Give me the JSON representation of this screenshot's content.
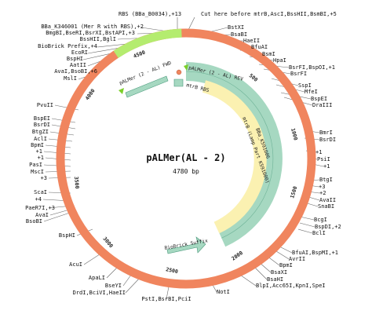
{
  "plasmid": {
    "name": "pALMer(AL - 2)",
    "length": "4780 bp"
  },
  "colors": {
    "backbone": "#f0855e",
    "rbs_arc": "#b4ec6f",
    "teal": "#a6d8c1",
    "yellow": "#fbf1b1",
    "primer": "#7ccf2a"
  },
  "ticks": [
    "500",
    "1000",
    "1500",
    "2000",
    "2500",
    "3000",
    "3500",
    "4000",
    "4500"
  ],
  "features": {
    "fwd_primer": "pALMer (2 - AL) FWD",
    "rev_primer": "pALMer (2 - AL) REV",
    "mtrb_rbs": "mtrB RBS",
    "bba_k591006": "BBa_K591006",
    "mtrb_part": "mtrB (Lamp Part K591000)",
    "suffix": "BioBrick Suffix"
  },
  "labels": {
    "rbs": "RBS (BBa_B0034),+13",
    "cut": "Cut here before mtrB,AscI,BssHII,BsmBI,+5",
    "bba_k346001": "BBa_K346001 (Mer R with RBS),+2",
    "bmgbi": "BmgBI,BseRI,BsrXI,BstAPI,+3",
    "bsshii_bgli": "BssHII,BglI",
    "prefix": "BioBrick Prefix,+4",
    "ecori": "EcoRI",
    "bsphi_top": "BspHI",
    "aatii": "AatII",
    "avai_bsobi": "AvaI,BsoBI,+6",
    "msli": "MslI",
    "bstxi": "BstXI",
    "bsabi": "BsaBI",
    "haeii": "HaeII",
    "bfuai_r": "BfuAI",
    "bsmi": "BsmI",
    "hpai": "HpaI",
    "bsrfi_bspoi": "BsrFI,BspOI,+1",
    "bsrfi": "BsrFI",
    "sspi": "SspI",
    "mfei": "MfeI",
    "bspei_r": "BspEI",
    "draiii": "DraIII",
    "bmri": "BmrI",
    "bsrdi_r": "BsrDI",
    "plus1_a": "+1",
    "psii": "PsiI",
    "plus1_b": "+1",
    "btgi": "BtgI",
    "plus3": "+3",
    "plus2": "+2",
    "avaii": "AvaII",
    "snabi": "SnaBI",
    "bcgi": "BcgI",
    "bspdi": "BspDI,+2",
    "bcli": "BclI",
    "bfuai_bspmi": "BfuAI,BspMI,+1",
    "avrii": "AvrII",
    "bpmi": "BpmI",
    "bsaxi": "BsaXI",
    "bsahi": "BsaHI",
    "blpi": "BlpI,Acc65I,KpnI,SpeI",
    "noti": "NotI",
    "psti": "PstI,BsrBI,PciI",
    "drdi": "DrdI,BciVI,HaeII",
    "bseyi": "BseYI",
    "apali": "ApaLI",
    "acui": "AcuI",
    "bsphi_bot": "BspHI",
    "bsobi": "BsoBI",
    "avai": "AvaI",
    "paer7i": "PaeR7I,+3",
    "plus4": "+4",
    "scai": "ScaI",
    "plus3_l": "+3",
    "msci": "MscI",
    "pasi": "PasI",
    "plus1_l1": "+1",
    "plus1_l2": "+1",
    "bpmi_l": "BpmI",
    "acli": "AclI",
    "btgzi": "BtgZI",
    "bsrdi_l": "BsrDI",
    "bspei_l": "BspEI",
    "pvuii": "PvuII"
  }
}
